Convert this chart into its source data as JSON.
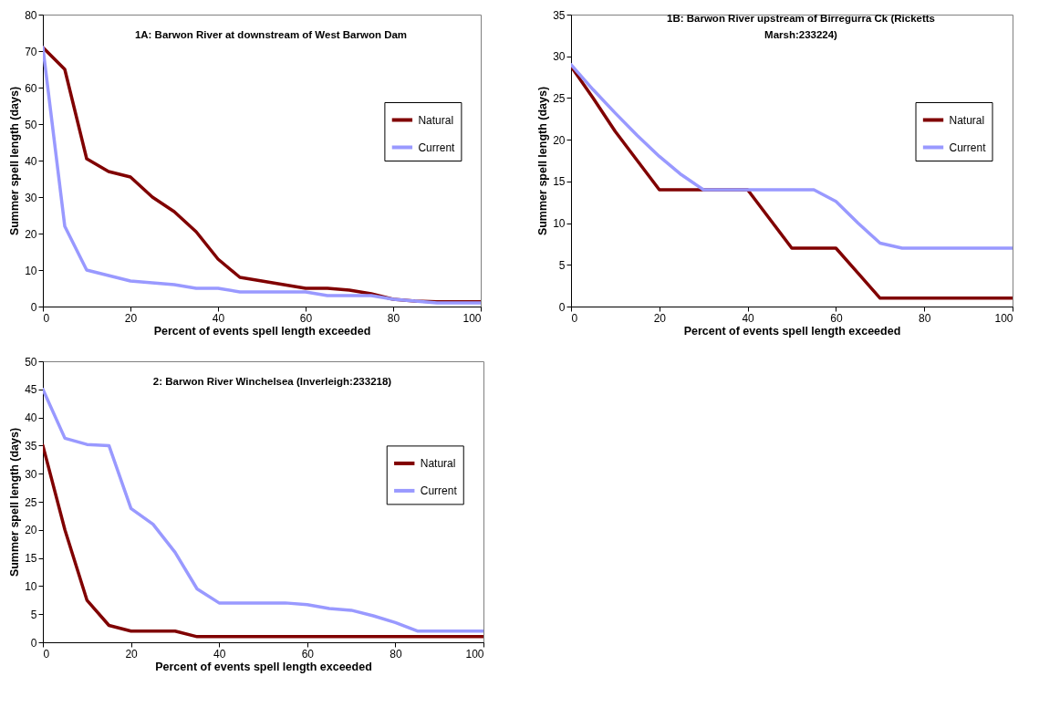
{
  "chart_data": [
    {
      "type": "line",
      "title": "1A: Barwon River at downstream of West Barwon Dam",
      "xlabel": "Percent of events spell length exceeded",
      "ylabel": "Summer spell length (days)",
      "x": [
        0,
        5,
        10,
        15,
        20,
        25,
        30,
        35,
        40,
        45,
        50,
        55,
        60,
        65,
        70,
        75,
        80,
        85,
        90,
        95,
        100
      ],
      "series": [
        {
          "name": "Natural",
          "color": "#800000",
          "values": [
            71,
            65,
            40.5,
            37,
            35.5,
            30,
            26,
            20.5,
            13,
            8,
            7,
            6,
            5,
            5,
            4.5,
            3.5,
            2,
            1.5,
            1.3,
            1.3,
            1.3
          ]
        },
        {
          "name": "Current",
          "color": "#9999ff",
          "values": [
            71,
            22,
            10,
            8.5,
            7,
            6.5,
            6,
            5,
            5,
            4,
            4,
            4,
            4,
            3,
            3,
            3,
            2,
            1.5,
            1,
            1,
            1
          ]
        }
      ],
      "xlim": [
        0,
        100
      ],
      "xticks": [
        0,
        20,
        40,
        60,
        80,
        100
      ],
      "ylim": [
        0,
        80
      ],
      "yticks": [
        0,
        10,
        20,
        30,
        40,
        50,
        60,
        70,
        80
      ],
      "legend": "right",
      "grid": false
    },
    {
      "type": "line",
      "title": "1B: Barwon River upstream of Birregurra Ck (Ricketts Marsh:233224)",
      "xlabel": "Percent of events spell length exceeded",
      "ylabel": "Summer spell length (days)",
      "x": [
        0,
        5,
        10,
        15,
        20,
        25,
        30,
        35,
        40,
        45,
        50,
        55,
        60,
        65,
        70,
        75,
        80,
        85,
        90,
        95,
        100
      ],
      "series": [
        {
          "name": "Natural",
          "color": "#800000",
          "values": [
            28.8,
            25,
            21,
            17.5,
            14,
            14,
            14,
            14,
            14,
            10.5,
            7,
            7,
            7,
            4,
            1,
            1,
            1,
            1,
            1,
            1,
            1
          ]
        },
        {
          "name": "Current",
          "color": "#9999ff",
          "values": [
            29,
            26,
            23.2,
            20.5,
            18,
            15.8,
            14,
            14,
            14,
            14,
            14,
            14,
            12.6,
            10,
            7.6,
            7,
            7,
            7,
            7,
            7,
            7
          ]
        }
      ],
      "xlim": [
        0,
        100
      ],
      "xticks": [
        0,
        20,
        40,
        60,
        80,
        100
      ],
      "ylim": [
        0,
        35
      ],
      "yticks": [
        0,
        5,
        10,
        15,
        20,
        25,
        30,
        35
      ],
      "legend": "right",
      "grid": false
    },
    {
      "type": "line",
      "title": "2: Barwon River Winchelsea (Inverleigh:233218)",
      "xlabel": "Percent of events spell length exceeded",
      "ylabel": "Summer spell length (days)",
      "x": [
        0,
        5,
        10,
        15,
        20,
        25,
        30,
        35,
        40,
        45,
        50,
        55,
        60,
        65,
        70,
        75,
        80,
        85,
        90,
        95,
        100
      ],
      "series": [
        {
          "name": "Natural",
          "color": "#800000",
          "values": [
            35,
            20,
            7.5,
            3,
            2,
            2,
            2,
            1,
            1,
            1,
            1,
            1,
            1,
            1,
            1,
            1,
            1,
            1,
            1,
            1,
            1
          ]
        },
        {
          "name": "Current",
          "color": "#9999ff",
          "values": [
            45,
            36.3,
            35.2,
            35,
            23.8,
            21,
            16,
            9.5,
            7,
            7,
            7,
            7,
            6.7,
            6,
            5.7,
            4.7,
            3.5,
            2,
            2,
            2,
            2
          ]
        }
      ],
      "xlim": [
        0,
        100
      ],
      "xticks": [
        0,
        20,
        40,
        60,
        80,
        100
      ],
      "ylim": [
        0,
        50
      ],
      "yticks": [
        0,
        5,
        10,
        15,
        20,
        25,
        30,
        35,
        40,
        45,
        50
      ],
      "legend": "right",
      "grid": false
    }
  ]
}
